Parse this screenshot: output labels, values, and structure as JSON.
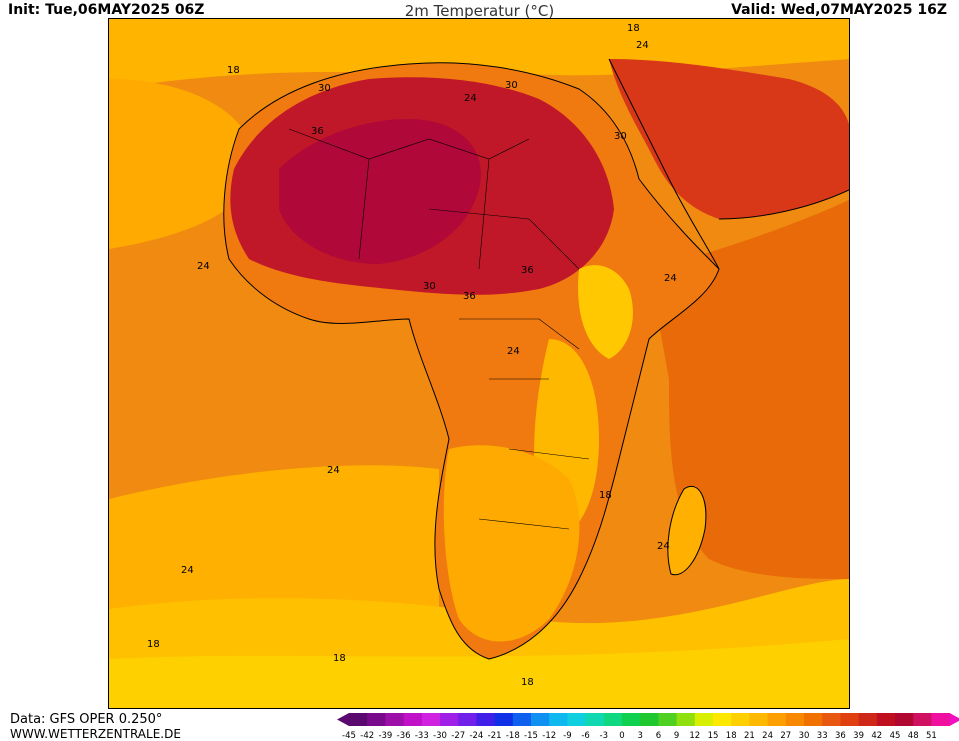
{
  "header": {
    "init_label": "Init: Tue,06MAY2025 06Z",
    "title": "2m Temperatur (°C)",
    "valid_label": "Valid: Wed,07MAY2025 16Z"
  },
  "footer": {
    "data_source": "Data: GFS OPER 0.250°",
    "website": "WWW.WETTERZENTRALE.DE"
  },
  "contour_labels": [
    "18",
    "18",
    "24",
    "24",
    "24",
    "24",
    "24",
    "24",
    "24",
    "18",
    "18",
    "18",
    "18",
    "30",
    "30",
    "30",
    "30",
    "36",
    "36",
    "36",
    "24"
  ],
  "legend": {
    "ticks": [
      "-45",
      "-42",
      "-39",
      "-36",
      "-33",
      "-30",
      "-27",
      "-24",
      "-21",
      "-18",
      "-15",
      "-12",
      "-9",
      "-6",
      "-3",
      "0",
      "3",
      "6",
      "9",
      "12",
      "15",
      "18",
      "21",
      "24",
      "27",
      "30",
      "33",
      "36",
      "39",
      "42",
      "45",
      "48",
      "51"
    ],
    "colors": [
      "#5a0a6e",
      "#7a0a8c",
      "#9c0fa8",
      "#c010c8",
      "#d020e0",
      "#a020e8",
      "#7020e8",
      "#4020e8",
      "#1030e8",
      "#1060f0",
      "#1090f0",
      "#10b8f0",
      "#10d0e0",
      "#10d8b0",
      "#10d880",
      "#10d050",
      "#20c830",
      "#50d020",
      "#90e010",
      "#d8f000",
      "#ffe800",
      "#ffd000",
      "#ffb800",
      "#ffa000",
      "#f88800",
      "#f07000",
      "#e85810",
      "#e04010",
      "#d02818",
      "#c01020",
      "#b00830",
      "#d01060",
      "#f010a0"
    ]
  }
}
